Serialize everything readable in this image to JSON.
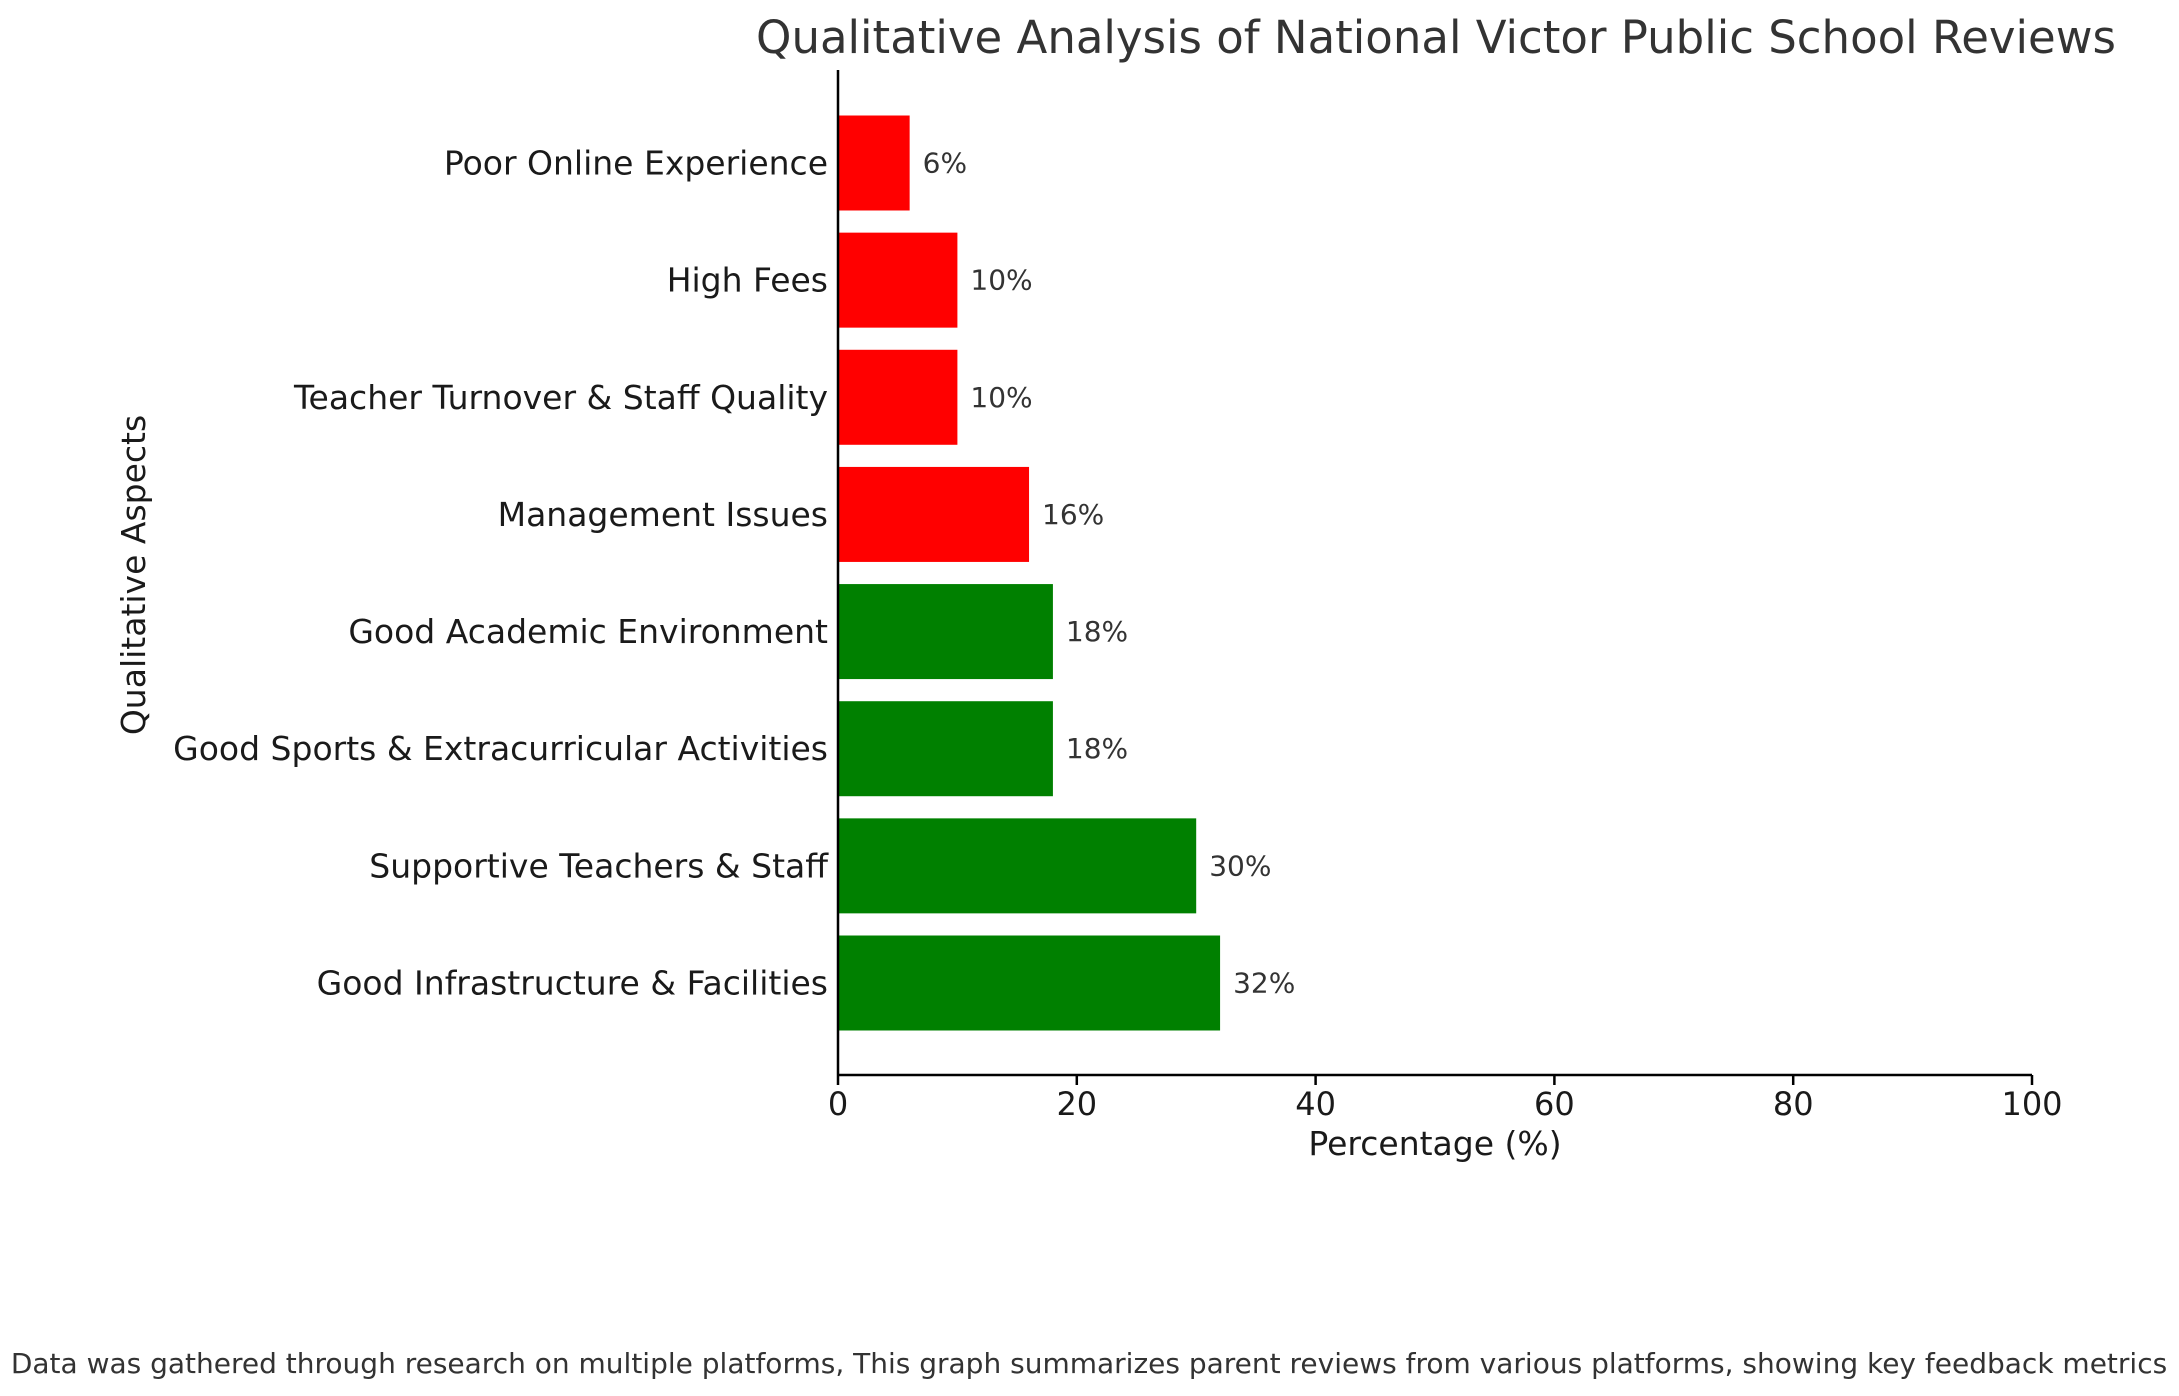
{
  "chart_data": {
    "type": "bar",
    "orientation": "horizontal",
    "title": "Qualitative Analysis of National Victor Public School Reviews",
    "xlabel": "Percentage (%)",
    "ylabel": "Qualitative Aspects",
    "xlim": [
      0,
      100
    ],
    "xticks": [
      0,
      20,
      40,
      60,
      80,
      100
    ],
    "categories": [
      "Poor Online Experience",
      "High Fees",
      "Teacher Turnover & Staff Quality",
      "Management Issues",
      "Good Academic Environment",
      "Good Sports & Extracurricular Activities",
      "Supportive Teachers & Staff",
      "Good Infrastructure & Facilities"
    ],
    "values": [
      6,
      10,
      10,
      16,
      18,
      18,
      30,
      32
    ],
    "value_labels": [
      "6%",
      "10%",
      "10%",
      "16%",
      "18%",
      "18%",
      "30%",
      "32%"
    ],
    "bar_colors": [
      "#ff0000",
      "#ff0000",
      "#ff0000",
      "#ff0000",
      "#008000",
      "#008000",
      "#008000",
      "#008000"
    ],
    "grid": false,
    "legend": "none"
  },
  "footnote": "Data was gathered through research on multiple platforms, This graph summarizes parent reviews from various platforms, showing key feedback metrics"
}
